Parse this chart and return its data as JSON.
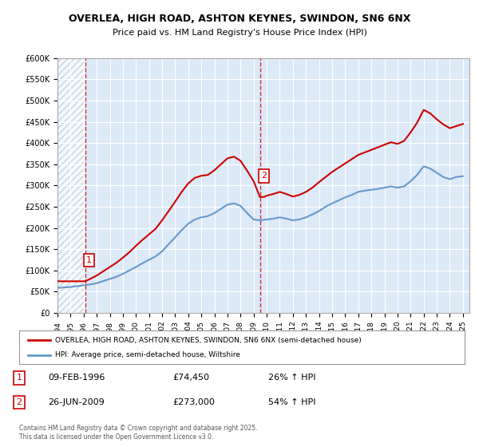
{
  "title_line1": "OVERLEA, HIGH ROAD, ASHTON KEYNES, SWINDON, SN6 6NX",
  "title_line2": "Price paid vs. HM Land Registry's House Price Index (HPI)",
  "ylabel": "",
  "xlabel": "",
  "background_color": "#dce9f7",
  "plot_bg_color": "#dce9f7",
  "hatch_color": "#c0d0e8",
  "ylim": [
    0,
    600000
  ],
  "yticks": [
    0,
    50000,
    100000,
    150000,
    200000,
    250000,
    300000,
    350000,
    400000,
    450000,
    500000,
    550000,
    600000
  ],
  "ytick_labels": [
    "£0",
    "£50K",
    "£100K",
    "£150K",
    "£200K",
    "£250K",
    "£300K",
    "£350K",
    "£400K",
    "£450K",
    "£500K",
    "£550K",
    "£600K"
  ],
  "xlim_start": 1994.0,
  "xlim_end": 2025.5,
  "sale1_x": 1996.11,
  "sale1_y": 74450,
  "sale2_x": 2009.48,
  "sale2_y": 273000,
  "sale1_label": "1",
  "sale2_label": "2",
  "red_line_color": "#cc0000",
  "blue_line_color": "#6699cc",
  "legend_label_red": "OVERLEA, HIGH ROAD, ASHTON KEYNES, SWINDON, SN6 6NX (semi-detached house)",
  "legend_label_blue": "HPI: Average price, semi-detached house, Wiltshire",
  "annotation1_date": "09-FEB-1996",
  "annotation1_price": "£74,450",
  "annotation1_hpi": "26% ↑ HPI",
  "annotation2_date": "26-JUN-2009",
  "annotation2_price": "£273,000",
  "annotation2_hpi": "54% ↑ HPI",
  "footer": "Contains HM Land Registry data © Crown copyright and database right 2025.\nThis data is licensed under the Open Government Licence v3.0.",
  "hpi_blue_data_x": [
    1994.0,
    1994.5,
    1995.0,
    1995.5,
    1996.0,
    1996.5,
    1997.0,
    1997.5,
    1998.0,
    1998.5,
    1999.0,
    1999.5,
    2000.0,
    2000.5,
    2001.0,
    2001.5,
    2002.0,
    2002.5,
    2003.0,
    2003.5,
    2004.0,
    2004.5,
    2005.0,
    2005.5,
    2006.0,
    2006.5,
    2007.0,
    2007.5,
    2008.0,
    2008.5,
    2009.0,
    2009.5,
    2010.0,
    2010.5,
    2011.0,
    2011.5,
    2012.0,
    2012.5,
    2013.0,
    2013.5,
    2014.0,
    2014.5,
    2015.0,
    2015.5,
    2016.0,
    2016.5,
    2017.0,
    2017.5,
    2018.0,
    2018.5,
    2019.0,
    2019.5,
    2020.0,
    2020.5,
    2021.0,
    2021.5,
    2022.0,
    2022.5,
    2023.0,
    2023.5,
    2024.0,
    2024.5,
    2025.0
  ],
  "hpi_blue_data_y": [
    59000,
    60000,
    61000,
    63000,
    65000,
    67000,
    70000,
    75000,
    80000,
    85000,
    92000,
    100000,
    108000,
    117000,
    125000,
    133000,
    145000,
    162000,
    178000,
    195000,
    210000,
    220000,
    225000,
    228000,
    235000,
    245000,
    255000,
    258000,
    252000,
    235000,
    220000,
    218000,
    220000,
    222000,
    225000,
    222000,
    218000,
    220000,
    225000,
    232000,
    240000,
    250000,
    258000,
    265000,
    272000,
    278000,
    285000,
    288000,
    290000,
    292000,
    295000,
    298000,
    295000,
    298000,
    310000,
    325000,
    345000,
    340000,
    330000,
    320000,
    315000,
    320000,
    322000
  ],
  "red_line_data_x": [
    1994.0,
    1995.0,
    1996.11,
    1996.5,
    1997.0,
    1997.5,
    1998.0,
    1998.5,
    1999.0,
    1999.5,
    2000.0,
    2000.5,
    2001.0,
    2001.5,
    2002.0,
    2002.5,
    2003.0,
    2003.5,
    2004.0,
    2004.5,
    2005.0,
    2005.5,
    2006.0,
    2006.5,
    2007.0,
    2007.5,
    2008.0,
    2008.5,
    2009.0,
    2009.48,
    2009.8,
    2010.0,
    2010.5,
    2011.0,
    2011.5,
    2012.0,
    2012.5,
    2013.0,
    2013.5,
    2014.0,
    2014.5,
    2015.0,
    2015.5,
    2016.0,
    2016.5,
    2017.0,
    2017.5,
    2018.0,
    2018.5,
    2019.0,
    2019.5,
    2020.0,
    2020.5,
    2021.0,
    2021.5,
    2022.0,
    2022.5,
    2023.0,
    2023.5,
    2024.0,
    2024.5,
    2025.0
  ],
  "red_line_data_y": [
    74450,
    74450,
    74450,
    80000,
    88000,
    98000,
    108000,
    118000,
    130000,
    143000,
    158000,
    172000,
    185000,
    198000,
    218000,
    240000,
    262000,
    285000,
    305000,
    318000,
    323000,
    325000,
    336000,
    350000,
    364000,
    368000,
    358000,
    335000,
    310000,
    273000,
    273000,
    276000,
    280000,
    285000,
    280000,
    274000,
    278000,
    285000,
    295000,
    308000,
    320000,
    332000,
    342000,
    352000,
    362000,
    372000,
    378000,
    384000,
    390000,
    396000,
    402000,
    398000,
    405000,
    425000,
    448000,
    478000,
    470000,
    456000,
    444000,
    435000,
    440000,
    445000
  ]
}
